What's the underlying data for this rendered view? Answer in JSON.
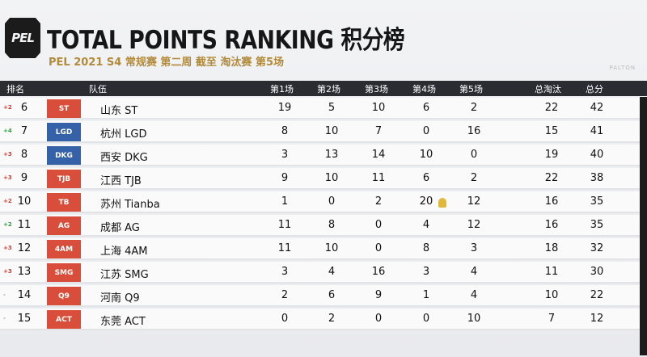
{
  "header": {
    "logo_text": "PEL",
    "title": "TOTAL POINTS RANKING 积分榜",
    "subtitle": "PEL 2021 S4 常规赛 第二周 截至 淘汰赛 第5场",
    "brand": "PALTON"
  },
  "columns": {
    "rank": "排名",
    "team": "队伍",
    "g1": "第1场",
    "g2": "第2场",
    "g3": "第3场",
    "g4": "第4场",
    "g5": "第5场",
    "kills": "总淘汰",
    "total": "总分"
  },
  "rows": [
    {
      "change": "+2",
      "rank": "6",
      "team": "山东 ST",
      "emblem": "ST",
      "g1": "19",
      "g2": "5",
      "g3": "10",
      "g4": "6",
      "g5": "2",
      "kills": "22",
      "total": "42"
    },
    {
      "change": "+4",
      "rank": "7",
      "team": "杭州 LGD",
      "emblem": "LGD",
      "g1": "8",
      "g2": "10",
      "g3": "7",
      "g4": "0",
      "g5": "16",
      "kills": "15",
      "total": "41"
    },
    {
      "change": "+3",
      "rank": "8",
      "team": "西安 DKG",
      "emblem": "DKG",
      "g1": "3",
      "g2": "13",
      "g3": "14",
      "g4": "10",
      "g5": "0",
      "kills": "19",
      "total": "40"
    },
    {
      "change": "+3",
      "rank": "9",
      "team": "江西 TJB",
      "emblem": "TJB",
      "g1": "9",
      "g2": "10",
      "g3": "11",
      "g4": "6",
      "g5": "2",
      "kills": "22",
      "total": "38"
    },
    {
      "change": "+2",
      "rank": "10",
      "team": "苏州 Tianba",
      "emblem": "TB",
      "g1": "1",
      "g2": "0",
      "g3": "2",
      "g4": "20",
      "g5": "12",
      "kills": "16",
      "total": "35"
    },
    {
      "change": "+2",
      "rank": "11",
      "team": "成都 AG",
      "emblem": "AG",
      "g1": "11",
      "g2": "8",
      "g3": "0",
      "g4": "4",
      "g5": "12",
      "kills": "16",
      "total": "35"
    },
    {
      "change": "+3",
      "rank": "12",
      "team": "上海 4AM",
      "emblem": "4AM",
      "g1": "11",
      "g2": "10",
      "g3": "0",
      "g4": "8",
      "g5": "3",
      "kills": "18",
      "total": "32"
    },
    {
      "change": "+3",
      "rank": "13",
      "team": "江苏 SMG",
      "emblem": "SMG",
      "g1": "3",
      "g2": "4",
      "g3": "16",
      "g4": "3",
      "g5": "4",
      "kills": "11",
      "total": "30"
    },
    {
      "change": "-",
      "rank": "14",
      "team": "河南 Q9",
      "emblem": "Q9",
      "g1": "2",
      "g2": "6",
      "g3": "9",
      "g4": "1",
      "g5": "4",
      "kills": "10",
      "total": "22"
    },
    {
      "change": "-",
      "rank": "15",
      "team": "东莞 ACT",
      "emblem": "ACT",
      "g1": "0",
      "g2": "2",
      "g3": "0",
      "g4": "0",
      "g5": "10",
      "kills": "7",
      "total": "12"
    }
  ],
  "colors": {
    "header_bg": "#2a2c31",
    "accent_gold": "#b18a3a",
    "change_up_green": "#2e9d3f",
    "change_up_red": "#d33a2c",
    "emblem_red": "#d94e3a",
    "emblem_blue": "#3561a8"
  }
}
